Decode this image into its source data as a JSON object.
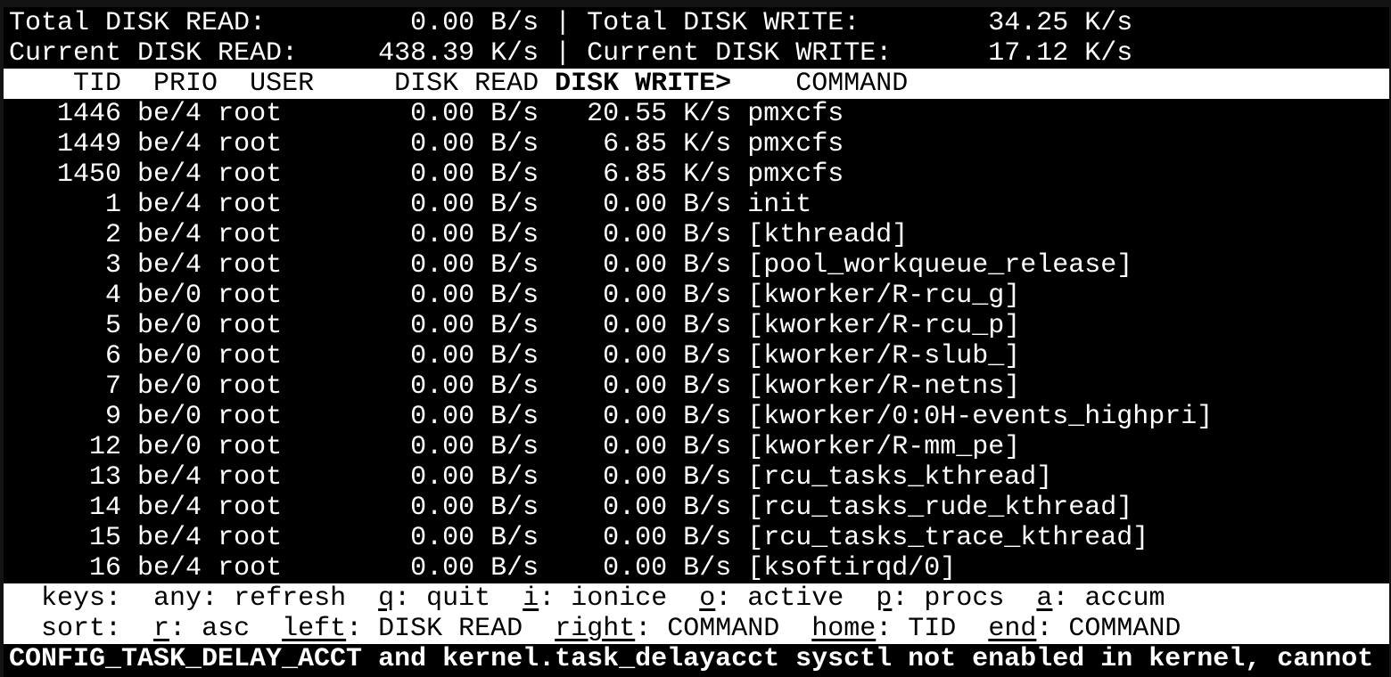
{
  "summary": {
    "total_read_label": "Total DISK READ:",
    "total_read_value": "0.00 B/s",
    "total_write_label": "Total DISK WRITE:",
    "total_write_value": "34.25 K/s",
    "current_read_label": "Current DISK READ:",
    "current_read_value": "438.39 K/s",
    "current_write_label": "Current DISK WRITE:",
    "current_write_value": "17.12 K/s",
    "separator": "|"
  },
  "columns": {
    "tid": "TID",
    "prio": "PRIO",
    "user": "USER",
    "disk_read": "DISK READ",
    "disk_write": "DISK WRITE>",
    "command": "COMMAND"
  },
  "rows": [
    {
      "tid": "1446",
      "prio": "be/4",
      "user": "root",
      "read": "0.00 B/s",
      "write": "20.55 K/s",
      "command": "pmxcfs"
    },
    {
      "tid": "1449",
      "prio": "be/4",
      "user": "root",
      "read": "0.00 B/s",
      "write": "6.85 K/s",
      "command": "pmxcfs"
    },
    {
      "tid": "1450",
      "prio": "be/4",
      "user": "root",
      "read": "0.00 B/s",
      "write": "6.85 K/s",
      "command": "pmxcfs"
    },
    {
      "tid": "1",
      "prio": "be/4",
      "user": "root",
      "read": "0.00 B/s",
      "write": "0.00 B/s",
      "command": "init"
    },
    {
      "tid": "2",
      "prio": "be/4",
      "user": "root",
      "read": "0.00 B/s",
      "write": "0.00 B/s",
      "command": "[kthreadd]"
    },
    {
      "tid": "3",
      "prio": "be/4",
      "user": "root",
      "read": "0.00 B/s",
      "write": "0.00 B/s",
      "command": "[pool_workqueue_release]"
    },
    {
      "tid": "4",
      "prio": "be/0",
      "user": "root",
      "read": "0.00 B/s",
      "write": "0.00 B/s",
      "command": "[kworker/R-rcu_g]"
    },
    {
      "tid": "5",
      "prio": "be/0",
      "user": "root",
      "read": "0.00 B/s",
      "write": "0.00 B/s",
      "command": "[kworker/R-rcu_p]"
    },
    {
      "tid": "6",
      "prio": "be/0",
      "user": "root",
      "read": "0.00 B/s",
      "write": "0.00 B/s",
      "command": "[kworker/R-slub_]"
    },
    {
      "tid": "7",
      "prio": "be/0",
      "user": "root",
      "read": "0.00 B/s",
      "write": "0.00 B/s",
      "command": "[kworker/R-netns]"
    },
    {
      "tid": "9",
      "prio": "be/0",
      "user": "root",
      "read": "0.00 B/s",
      "write": "0.00 B/s",
      "command": "[kworker/0:0H-events_highpri]"
    },
    {
      "tid": "12",
      "prio": "be/0",
      "user": "root",
      "read": "0.00 B/s",
      "write": "0.00 B/s",
      "command": "[kworker/R-mm_pe]"
    },
    {
      "tid": "13",
      "prio": "be/4",
      "user": "root",
      "read": "0.00 B/s",
      "write": "0.00 B/s",
      "command": "[rcu_tasks_kthread]"
    },
    {
      "tid": "14",
      "prio": "be/4",
      "user": "root",
      "read": "0.00 B/s",
      "write": "0.00 B/s",
      "command": "[rcu_tasks_rude_kthread]"
    },
    {
      "tid": "15",
      "prio": "be/4",
      "user": "root",
      "read": "0.00 B/s",
      "write": "0.00 B/s",
      "command": "[rcu_tasks_trace_kthread]"
    },
    {
      "tid": "16",
      "prio": "be/4",
      "user": "root",
      "read": "0.00 B/s",
      "write": "0.00 B/s",
      "command": "[ksoftirqd/0]"
    }
  ],
  "keys": {
    "label": "keys:",
    "items": [
      {
        "key": "any",
        "desc": "refresh",
        "underline": false
      },
      {
        "key": "q",
        "desc": "quit",
        "underline": true
      },
      {
        "key": "i",
        "desc": "ionice",
        "underline": true
      },
      {
        "key": "o",
        "desc": "active",
        "underline": true
      },
      {
        "key": "p",
        "desc": "procs",
        "underline": true
      },
      {
        "key": "a",
        "desc": "accum",
        "underline": true
      }
    ]
  },
  "sort": {
    "label": "sort:",
    "items": [
      {
        "key": "r",
        "desc": "asc",
        "underline": true
      },
      {
        "key": "left",
        "desc": "DISK READ",
        "underline": true
      },
      {
        "key": "right",
        "desc": "COMMAND",
        "underline": true
      },
      {
        "key": "home",
        "desc": "TID",
        "underline": true
      },
      {
        "key": "end",
        "desc": "COMMAND",
        "underline": true
      }
    ]
  },
  "warning": "CONFIG_TASK_DELAY_ACCT and kernel.task_delayacct sysctl not enabled in kernel, cannot",
  "colors": {
    "background": "#000000",
    "foreground": "#ffffff",
    "inverse_bg": "#ffffff",
    "frame": "#131313"
  }
}
